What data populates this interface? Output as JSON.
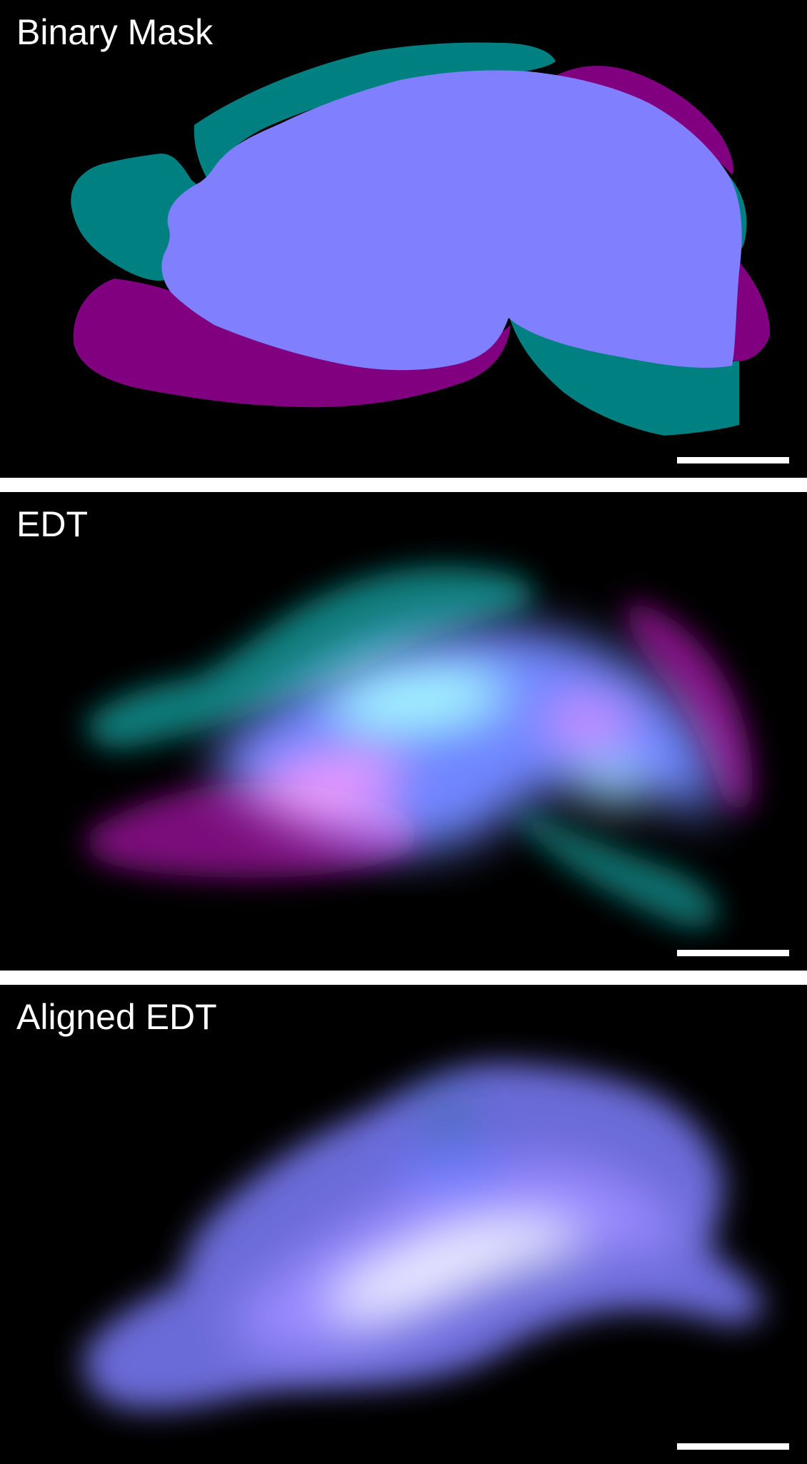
{
  "panels": [
    {
      "title": "Binary Mask"
    },
    {
      "title": "EDT"
    },
    {
      "title": "Aligned EDT"
    }
  ],
  "colors": {
    "background": "#000000",
    "overlap": "#8080ff",
    "teal": "#008080",
    "magenta": "#800080",
    "text": "#ffffff",
    "scale_bar": "#ffffff"
  }
}
